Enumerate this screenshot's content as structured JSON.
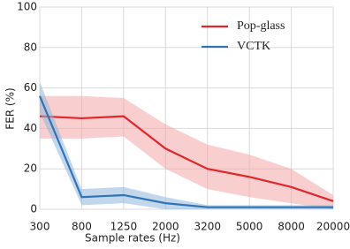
{
  "chart_data": {
    "type": "line",
    "xlabel": "Sample rates (Hz)",
    "ylabel": "FER (%)",
    "categories": [
      "300",
      "800",
      "1250",
      "2000",
      "3200",
      "5000",
      "8000",
      "20000"
    ],
    "series": [
      {
        "name": "Pop-glass",
        "color": "#e3262b",
        "band_color": "#f4a6a8",
        "values": [
          46,
          45,
          46,
          30,
          20,
          16,
          11,
          4
        ],
        "upper": [
          56,
          56,
          55,
          42,
          32,
          27,
          20,
          7
        ],
        "lower": [
          35,
          35,
          36,
          20,
          10,
          6,
          3,
          0
        ]
      },
      {
        "name": "VCTK",
        "color": "#2f74b5",
        "band_color": "#8fb6dc",
        "values": [
          56,
          6,
          7,
          3,
          1,
          1,
          1,
          1
        ],
        "upper": [
          63,
          10,
          11,
          6,
          2,
          2,
          2,
          2
        ],
        "lower": [
          48,
          2,
          3,
          0,
          0,
          0,
          0,
          0
        ]
      }
    ],
    "ylim": [
      0,
      100
    ],
    "yticks": [
      0,
      20,
      40,
      60,
      80,
      100
    ],
    "grid": true,
    "legend": "upper right"
  }
}
